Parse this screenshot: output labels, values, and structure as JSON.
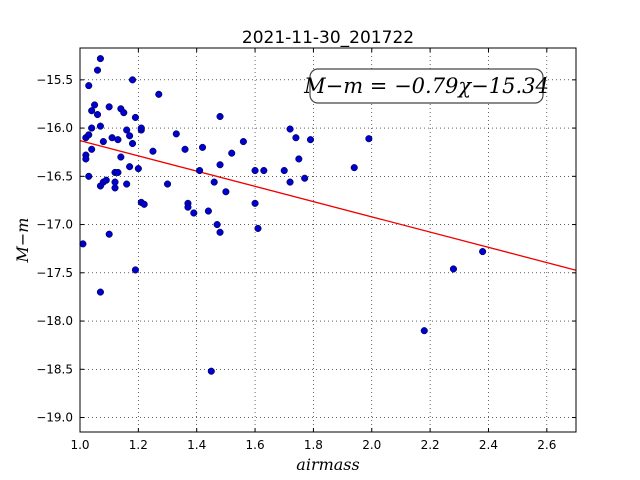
{
  "chart_data": {
    "type": "scatter",
    "title": "2021-11-30_201722",
    "xlabel": "airmass",
    "ylabel": "M−m",
    "xlim": [
      1.0,
      2.7
    ],
    "ylim": [
      -19.15,
      -15.17
    ],
    "xticks": [
      1.0,
      1.2,
      1.4,
      1.6,
      1.8,
      2.0,
      2.2,
      2.4,
      2.6
    ],
    "yticks": [
      -19.0,
      -18.5,
      -18.0,
      -17.5,
      -17.0,
      -16.5,
      -16.0,
      -15.5
    ],
    "xtick_labels": [
      "1.0",
      "1.2",
      "1.4",
      "1.6",
      "1.8",
      "2.0",
      "2.2",
      "2.4",
      "2.6"
    ],
    "ytick_labels": [
      "−19.0",
      "−18.5",
      "−18.0",
      "−17.5",
      "−17.0",
      "−16.5",
      "−16.0",
      "−15.5"
    ],
    "grid": true,
    "annotation": "M−m = −0.79χ−15.34",
    "fit": {
      "slope": -0.79,
      "intercept": -15.34,
      "color": "#ee0000"
    },
    "point_color": "#0000cc",
    "points": [
      [
        1.01,
        -17.2
      ],
      [
        1.02,
        -16.28
      ],
      [
        1.02,
        -16.32
      ],
      [
        1.02,
        -16.1
      ],
      [
        1.03,
        -15.56
      ],
      [
        1.03,
        -16.5
      ],
      [
        1.03,
        -16.07
      ],
      [
        1.04,
        -16.0
      ],
      [
        1.04,
        -15.82
      ],
      [
        1.04,
        -16.22
      ],
      [
        1.05,
        -15.76
      ],
      [
        1.06,
        -15.4
      ],
      [
        1.06,
        -15.86
      ],
      [
        1.07,
        -15.28
      ],
      [
        1.07,
        -15.98
      ],
      [
        1.07,
        -16.6
      ],
      [
        1.07,
        -17.7
      ],
      [
        1.08,
        -16.14
      ],
      [
        1.08,
        -16.56
      ],
      [
        1.09,
        -16.54
      ],
      [
        1.1,
        -17.1
      ],
      [
        1.1,
        -15.78
      ],
      [
        1.11,
        -16.1
      ],
      [
        1.12,
        -16.46
      ],
      [
        1.12,
        -16.62
      ],
      [
        1.12,
        -16.56
      ],
      [
        1.13,
        -16.12
      ],
      [
        1.13,
        -16.46
      ],
      [
        1.14,
        -15.8
      ],
      [
        1.14,
        -16.3
      ],
      [
        1.15,
        -15.84
      ],
      [
        1.16,
        -16.02
      ],
      [
        1.16,
        -16.58
      ],
      [
        1.17,
        -16.4
      ],
      [
        1.17,
        -16.08
      ],
      [
        1.18,
        -16.16
      ],
      [
        1.18,
        -15.5
      ],
      [
        1.19,
        -17.47
      ],
      [
        1.19,
        -15.89
      ],
      [
        1.2,
        -16.42
      ],
      [
        1.21,
        -16.02
      ],
      [
        1.21,
        -16.0
      ],
      [
        1.21,
        -16.77
      ],
      [
        1.22,
        -16.79
      ],
      [
        1.25,
        -16.24
      ],
      [
        1.27,
        -15.65
      ],
      [
        1.3,
        -16.58
      ],
      [
        1.33,
        -16.06
      ],
      [
        1.36,
        -16.22
      ],
      [
        1.37,
        -16.78
      ],
      [
        1.37,
        -16.82
      ],
      [
        1.39,
        -16.88
      ],
      [
        1.41,
        -16.44
      ],
      [
        1.42,
        -16.2
      ],
      [
        1.44,
        -16.86
      ],
      [
        1.45,
        -18.52
      ],
      [
        1.46,
        -16.56
      ],
      [
        1.47,
        -17.0
      ],
      [
        1.48,
        -17.08
      ],
      [
        1.48,
        -15.88
      ],
      [
        1.48,
        -16.38
      ],
      [
        1.5,
        -16.66
      ],
      [
        1.52,
        -16.26
      ],
      [
        1.56,
        -16.14
      ],
      [
        1.6,
        -16.78
      ],
      [
        1.6,
        -16.44
      ],
      [
        1.61,
        -17.04
      ],
      [
        1.63,
        -16.44
      ],
      [
        1.7,
        -16.44
      ],
      [
        1.72,
        -16.01
      ],
      [
        1.72,
        -16.56
      ],
      [
        1.74,
        -16.1
      ],
      [
        1.75,
        -16.32
      ],
      [
        1.77,
        -16.52
      ],
      [
        1.79,
        -16.12
      ],
      [
        1.94,
        -16.41
      ],
      [
        1.99,
        -16.11
      ],
      [
        2.18,
        -18.1
      ],
      [
        2.28,
        -17.46
      ],
      [
        2.38,
        -17.28
      ]
    ]
  }
}
